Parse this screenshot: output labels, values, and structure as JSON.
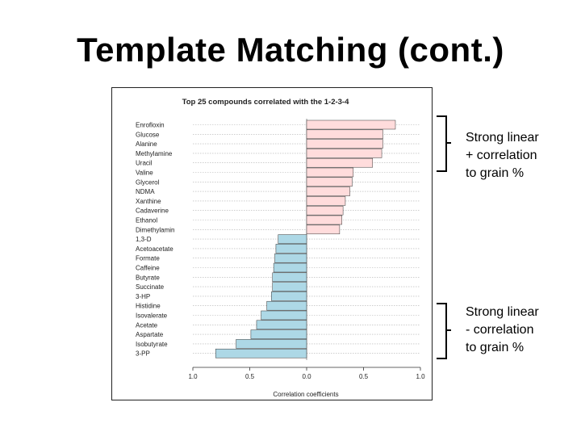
{
  "slide": {
    "title": "Template Matching (cont.)"
  },
  "annotations": [
    {
      "id": "positive",
      "lines": [
        "Strong linear",
        "+ correlation",
        "to grain %"
      ]
    },
    {
      "id": "negative",
      "lines": [
        "Strong linear",
        "- correlation",
        "to grain %"
      ]
    }
  ],
  "colors": {
    "positive_bar": "#ffdcdc",
    "negative_bar": "#add8e6",
    "bar_stroke": "#333333",
    "grid": "#b0b0b0"
  },
  "chart_data": {
    "type": "bar",
    "orientation": "horizontal",
    "title": "Top 25 compounds correlated with the 1-2-3-4",
    "xlabel": "Correlation coefficients",
    "ylabel": "",
    "xlim": [
      -1.0,
      1.0
    ],
    "xticks": [
      -1.0,
      -0.5,
      0.0,
      0.5,
      1.0
    ],
    "xtick_labels": [
      "1.0",
      "0.5",
      "0.0",
      "0.5",
      "1.0"
    ],
    "grid": true,
    "categories": [
      "Enrofloxin",
      "Glucose",
      "Alanine",
      "Methylamine",
      "Uracil",
      "Valine",
      "Glycerol",
      "NDMA",
      "Xanthine",
      "Cadaverine",
      "Ethanol",
      "Dimethylamin",
      "1,3-D",
      "Acetoacetate",
      "Formate",
      "Caffeine",
      "Butyrate",
      "Succinate",
      "3-HP",
      "Histidine",
      "Isovalerate",
      "Acetate",
      "Aspartate",
      "Isobutyrate",
      "3-PP"
    ],
    "values": [
      0.78,
      0.67,
      0.67,
      0.66,
      0.58,
      0.41,
      0.4,
      0.38,
      0.34,
      0.32,
      0.31,
      0.29,
      -0.25,
      -0.27,
      -0.28,
      -0.29,
      -0.3,
      -0.3,
      -0.31,
      -0.35,
      -0.4,
      -0.44,
      -0.49,
      -0.62,
      -0.8
    ]
  }
}
